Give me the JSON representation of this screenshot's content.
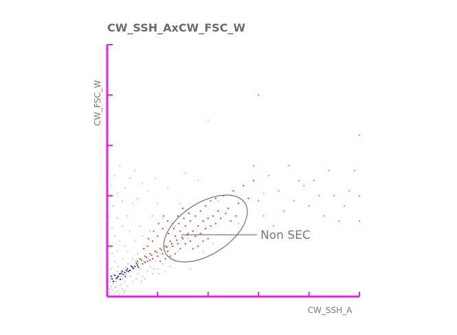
{
  "chart_data": {
    "type": "scatter",
    "title": "CW_SSH_AxCW_FSC_W",
    "xlabel": "CW_SSH_A",
    "ylabel": "CW_FSC_W",
    "xlim": [
      0,
      5
    ],
    "ylim": [
      0,
      5
    ],
    "x_ticks": [
      1,
      2,
      3,
      4,
      5
    ],
    "y_ticks": [
      1,
      2,
      3,
      4,
      5
    ],
    "grid": false,
    "axis_color": "#e61ee6",
    "gate": {
      "label": "Non SEC",
      "shape": "ellipse",
      "center": [
        1.95,
        1.35
      ],
      "radii": [
        2.45,
        0.93
      ],
      "rotation_deg": -33,
      "color": "#777777"
    },
    "series": [
      {
        "color": "#c8c8c8",
        "points": [
          [
            0.1,
            0.4
          ],
          [
            0.15,
            0.3
          ],
          [
            0.2,
            0.5
          ],
          [
            0.12,
            0.25
          ],
          [
            0.3,
            0.35
          ],
          [
            0.25,
            0.45
          ],
          [
            0.05,
            0.3
          ],
          [
            0.18,
            0.2
          ],
          [
            0.35,
            0.3
          ],
          [
            0.4,
            0.5
          ],
          [
            0.08,
            0.55
          ],
          [
            0.22,
            0.6
          ],
          [
            0.45,
            0.4
          ],
          [
            0.5,
            0.3
          ],
          [
            0.28,
            0.25
          ],
          [
            0.6,
            0.45
          ],
          [
            0.55,
            0.6
          ],
          [
            0.7,
            0.4
          ],
          [
            0.65,
            0.55
          ],
          [
            0.8,
            0.5
          ],
          [
            0.75,
            0.35
          ],
          [
            0.9,
            0.45
          ],
          [
            0.85,
            0.6
          ],
          [
            0.15,
            0.7
          ],
          [
            0.3,
            0.75
          ],
          [
            0.1,
            0.85
          ],
          [
            0.2,
            0.9
          ],
          [
            0.05,
            1.0
          ],
          [
            0.35,
            1.0
          ],
          [
            0.25,
            1.1
          ],
          [
            0.15,
            1.2
          ],
          [
            0.4,
            0.9
          ],
          [
            0.45,
            1.3
          ],
          [
            0.3,
            1.4
          ],
          [
            0.1,
            1.35
          ],
          [
            0.55,
            1.1
          ],
          [
            0.6,
            0.85
          ],
          [
            0.5,
            0.75
          ],
          [
            0.2,
            1.55
          ],
          [
            0.05,
            1.6
          ],
          [
            0.4,
            1.6
          ],
          [
            0.65,
            1.4
          ],
          [
            0.7,
            1.2
          ],
          [
            0.75,
            0.95
          ],
          [
            0.95,
            0.7
          ],
          [
            1.0,
            0.55
          ],
          [
            1.1,
            0.65
          ],
          [
            1.05,
            0.85
          ],
          [
            0.12,
            1.8
          ],
          [
            0.3,
            1.9
          ],
          [
            0.5,
            1.85
          ],
          [
            0.2,
            2.05
          ],
          [
            0.08,
            2.2
          ],
          [
            0.35,
            2.15
          ],
          [
            0.6,
            1.95
          ],
          [
            0.15,
            2.4
          ],
          [
            0.45,
            2.35
          ],
          [
            0.9,
            1.6
          ],
          [
            0.85,
            1.3
          ],
          [
            1.2,
            1.0
          ],
          [
            1.3,
            0.75
          ],
          [
            1.4,
            0.9
          ],
          [
            0.05,
            0.15
          ],
          [
            0.1,
            0.12
          ],
          [
            0.2,
            0.1
          ],
          [
            0.3,
            0.15
          ],
          [
            0.4,
            0.2
          ],
          [
            0.15,
            0.18
          ],
          [
            0.25,
            0.22
          ],
          [
            0.35,
            0.12
          ],
          [
            0.08,
            0.2
          ],
          [
            0.18,
            0.3
          ],
          [
            0.28,
            0.4
          ],
          [
            0.38,
            0.45
          ],
          [
            0.48,
            0.5
          ],
          [
            0.58,
            0.35
          ],
          [
            0.68,
            0.3
          ],
          [
            0.12,
            0.45
          ],
          [
            0.22,
            0.35
          ],
          [
            0.32,
            0.55
          ],
          [
            0.42,
            0.65
          ],
          [
            0.52,
            0.55
          ],
          [
            0.62,
            0.65
          ],
          [
            0.72,
            0.7
          ],
          [
            0.82,
            0.75
          ],
          [
            0.92,
            0.55
          ],
          [
            1.02,
            0.45
          ],
          [
            1.15,
            0.5
          ],
          [
            1.25,
            0.6
          ],
          [
            1.35,
            0.7
          ],
          [
            0.04,
            0.08
          ],
          [
            0.14,
            0.06
          ],
          [
            0.24,
            0.05
          ],
          [
            0.34,
            0.08
          ],
          [
            0.07,
            0.35
          ],
          [
            0.17,
            0.42
          ],
          [
            0.27,
            0.5
          ],
          [
            0.37,
            0.58
          ],
          [
            0.47,
            0.62
          ],
          [
            0.57,
            0.7
          ],
          [
            2.0,
            3.5
          ],
          [
            1.55,
            2.45
          ],
          [
            1.2,
            2.15
          ],
          [
            1.8,
            2.3
          ],
          [
            2.2,
            1.9
          ],
          [
            1.0,
            1.85
          ],
          [
            0.8,
            2.1
          ],
          [
            3.1,
            2.05
          ],
          [
            2.6,
            1.45
          ],
          [
            1.65,
            0.55
          ],
          [
            0.95,
            2.35
          ],
          [
            1.45,
            1.85
          ],
          [
            0.55,
            2.5
          ],
          [
            0.7,
            2.25
          ],
          [
            1.1,
            1.55
          ],
          [
            1.35,
            1.4
          ],
          [
            1.6,
            1.15
          ],
          [
            1.9,
            0.9
          ],
          [
            2.1,
            1.05
          ],
          [
            0.25,
            2.6
          ]
        ]
      },
      {
        "color": "#1f2bb0",
        "points": [
          [
            0.1,
            0.35
          ],
          [
            0.15,
            0.42
          ],
          [
            0.2,
            0.38
          ],
          [
            0.25,
            0.45
          ],
          [
            0.3,
            0.5
          ],
          [
            0.35,
            0.48
          ],
          [
            0.4,
            0.55
          ],
          [
            0.45,
            0.52
          ],
          [
            0.5,
            0.58
          ],
          [
            0.55,
            0.6
          ],
          [
            0.6,
            0.62
          ],
          [
            0.12,
            0.3
          ],
          [
            0.22,
            0.4
          ],
          [
            0.32,
            0.44
          ],
          [
            0.42,
            0.5
          ],
          [
            0.52,
            0.56
          ],
          [
            0.62,
            0.58
          ],
          [
            0.18,
            0.36
          ],
          [
            0.28,
            0.46
          ],
          [
            0.38,
            0.52
          ],
          [
            0.08,
            0.4
          ],
          [
            0.48,
            0.6
          ],
          [
            0.58,
            0.66
          ],
          [
            0.26,
            0.34
          ],
          [
            0.36,
            0.4
          ]
        ]
      },
      {
        "color": "#e2401a",
        "points": [
          [
            0.6,
            0.7
          ],
          [
            0.65,
            0.75
          ],
          [
            0.7,
            0.65
          ],
          [
            0.75,
            0.8
          ],
          [
            0.8,
            0.7
          ],
          [
            0.85,
            0.85
          ],
          [
            0.9,
            0.75
          ],
          [
            0.95,
            0.9
          ],
          [
            1.0,
            0.8
          ],
          [
            1.05,
            0.95
          ],
          [
            1.1,
            0.85
          ],
          [
            1.15,
            1.0
          ],
          [
            1.2,
            0.9
          ],
          [
            1.25,
            1.1
          ],
          [
            1.3,
            1.0
          ],
          [
            1.35,
            1.2
          ],
          [
            1.4,
            1.05
          ],
          [
            1.45,
            1.3
          ],
          [
            1.5,
            1.15
          ],
          [
            1.55,
            1.4
          ],
          [
            1.6,
            1.25
          ],
          [
            1.65,
            1.5
          ],
          [
            1.7,
            1.3
          ],
          [
            1.75,
            1.6
          ],
          [
            1.8,
            1.4
          ],
          [
            1.85,
            1.7
          ],
          [
            1.9,
            1.5
          ],
          [
            1.95,
            1.8
          ],
          [
            2.0,
            1.55
          ],
          [
            2.05,
            1.9
          ],
          [
            2.1,
            1.6
          ],
          [
            2.15,
            1.95
          ],
          [
            2.2,
            1.7
          ],
          [
            2.3,
            2.0
          ],
          [
            2.4,
            1.75
          ],
          [
            2.5,
            2.1
          ],
          [
            2.6,
            1.85
          ],
          [
            2.7,
            2.2
          ],
          [
            2.8,
            1.95
          ],
          [
            2.9,
            2.3
          ],
          [
            1.0,
            1.2
          ],
          [
            1.1,
            1.35
          ],
          [
            1.2,
            1.5
          ],
          [
            1.3,
            1.45
          ],
          [
            1.4,
            1.6
          ],
          [
            1.5,
            1.75
          ],
          [
            0.9,
            1.1
          ],
          [
            0.8,
            1.0
          ],
          [
            1.05,
            0.7
          ],
          [
            1.15,
            0.75
          ],
          [
            1.25,
            0.8
          ],
          [
            1.35,
            0.85
          ],
          [
            1.45,
            0.95
          ],
          [
            1.55,
            1.05
          ],
          [
            1.65,
            1.1
          ],
          [
            1.75,
            1.2
          ],
          [
            1.85,
            1.25
          ],
          [
            1.95,
            1.35
          ],
          [
            2.05,
            1.4
          ],
          [
            2.15,
            1.45
          ],
          [
            0.72,
            0.95
          ],
          [
            0.82,
            1.15
          ],
          [
            0.92,
            1.3
          ],
          [
            1.02,
            1.45
          ],
          [
            1.12,
            1.6
          ],
          [
            1.22,
            1.25
          ],
          [
            1.32,
            1.35
          ],
          [
            1.42,
            1.45
          ],
          [
            1.52,
            1.55
          ],
          [
            1.62,
            1.65
          ],
          [
            0.68,
            0.72
          ],
          [
            0.78,
            0.78
          ],
          [
            0.88,
            0.82
          ],
          [
            0.98,
            0.88
          ],
          [
            1.08,
            0.92
          ],
          [
            1.18,
            0.98
          ],
          [
            1.28,
            1.05
          ],
          [
            1.38,
            1.12
          ],
          [
            1.48,
            1.18
          ],
          [
            1.58,
            1.22
          ],
          [
            2.25,
            1.55
          ],
          [
            2.35,
            1.65
          ],
          [
            2.45,
            1.5
          ],
          [
            2.55,
            1.6
          ],
          [
            1.7,
            0.95
          ],
          [
            1.8,
            1.0
          ],
          [
            1.9,
            1.1
          ],
          [
            2.0,
            1.15
          ],
          [
            0.75,
            0.68
          ],
          [
            0.85,
            0.72
          ]
        ]
      },
      {
        "color": "#f08a2c",
        "points": [
          [
            3.0,
            1.9
          ],
          [
            3.2,
            2.4
          ],
          [
            3.4,
            2.1
          ],
          [
            3.6,
            2.6
          ],
          [
            3.8,
            2.3
          ],
          [
            4.0,
            1.8
          ],
          [
            4.2,
            2.0
          ],
          [
            4.4,
            2.5
          ],
          [
            4.6,
            1.5
          ],
          [
            4.8,
            2.1
          ],
          [
            5.0,
            2.0
          ],
          [
            5.0,
            1.5
          ],
          [
            4.9,
            2.5
          ],
          [
            4.5,
            2.0
          ],
          [
            3.5,
            1.7
          ],
          [
            3.3,
            1.4
          ],
          [
            3.7,
            1.9
          ],
          [
            4.3,
            1.6
          ],
          [
            5.0,
            3.2
          ],
          [
            2.9,
            2.6
          ],
          [
            3.1,
            1.6
          ],
          [
            4.1,
            2.3
          ],
          [
            4.7,
            1.8
          ],
          [
            3.9,
            2.2
          ],
          [
            3.0,
            4.0
          ]
        ]
      }
    ]
  }
}
